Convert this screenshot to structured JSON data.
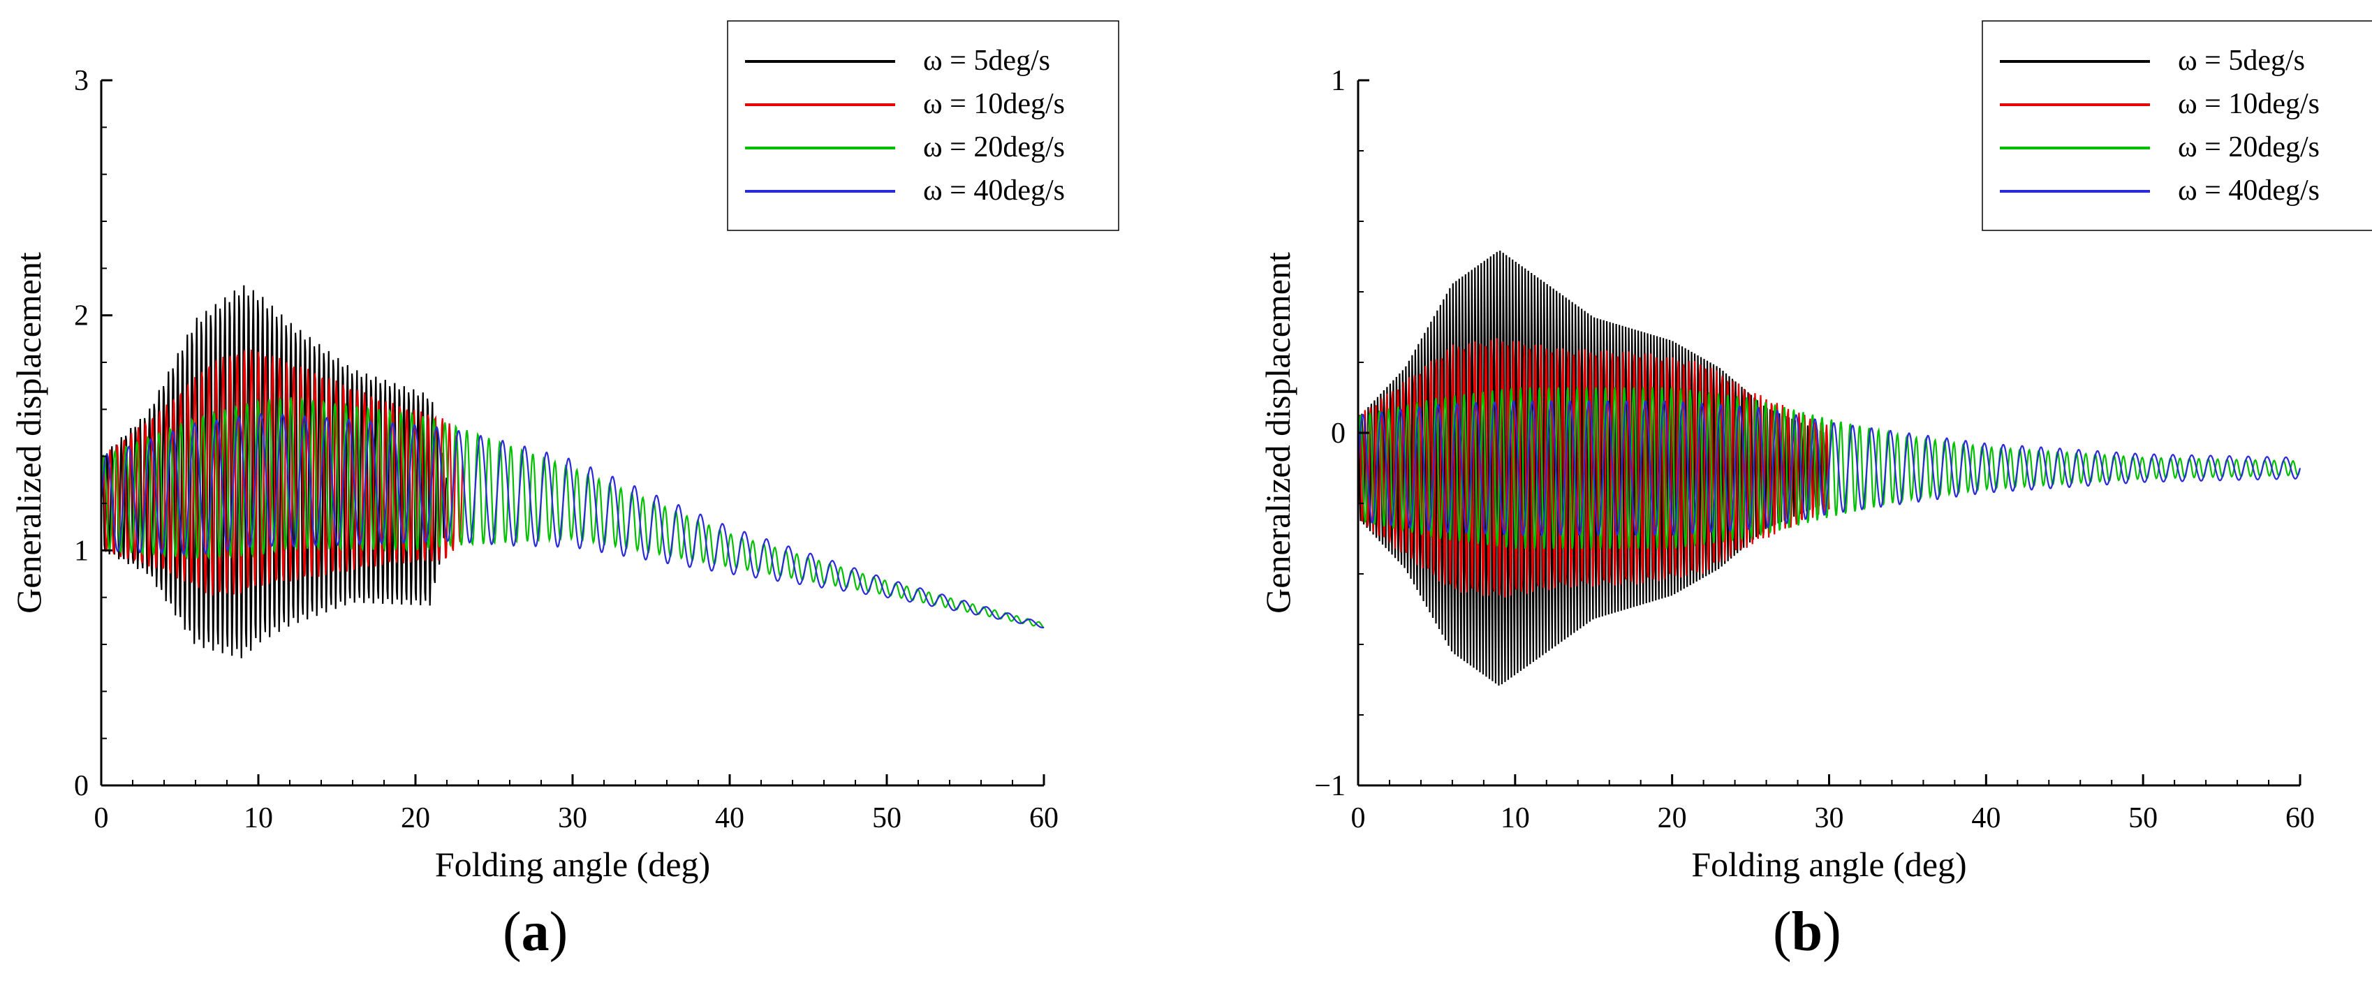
{
  "figure": {
    "captions": [
      "(a)",
      "(b)"
    ],
    "caption_letters": [
      "a",
      "b"
    ]
  },
  "colors": {
    "w5": "#000000",
    "w10": "#e60000",
    "w20": "#00c000",
    "w40": "#2a2ad8"
  },
  "chart_data": [
    {
      "panel": "a",
      "type": "line",
      "title": "",
      "xlabel": "Folding angle (deg)",
      "ylabel": "Generalized displacement",
      "xlim": [
        0,
        60
      ],
      "ylim": [
        0,
        3
      ],
      "xticks": [
        0,
        10,
        20,
        30,
        40,
        50,
        60
      ],
      "xtick_labels": [
        "0",
        "10",
        "20",
        "30",
        "40",
        "50",
        "60"
      ],
      "yticks": [
        0,
        1,
        2,
        3
      ],
      "ytick_labels": [
        "0",
        "1",
        "2",
        "3"
      ],
      "legend_position": "top-right",
      "legend": [
        "ω = 5deg/s",
        "ω = 10deg/s",
        "ω = 20deg/s",
        "ω = 40deg/s"
      ],
      "series": [
        {
          "name": "ω = 5deg/s",
          "color_key": "w5",
          "period": 0.3,
          "end": 22,
          "center": [
            [
              0,
              1.2
            ],
            [
              10,
              1.35
            ],
            [
              22,
              1.2
            ]
          ],
          "amplitude": [
            [
              0,
              0.2
            ],
            [
              3,
              0.35
            ],
            [
              6,
              0.7
            ],
            [
              9,
              0.8
            ],
            [
              12,
              0.65
            ],
            [
              16,
              0.5
            ],
            [
              21,
              0.45
            ],
            [
              22,
              0.1
            ]
          ]
        },
        {
          "name": "ω = 10deg/s",
          "color_key": "w10",
          "period": 0.45,
          "end": 23,
          "center": [
            [
              0,
              1.2
            ],
            [
              10,
              1.35
            ],
            [
              23,
              1.25
            ]
          ],
          "amplitude": [
            [
              0,
              0.2
            ],
            [
              4,
              0.35
            ],
            [
              7,
              0.5
            ],
            [
              9,
              0.52
            ],
            [
              13,
              0.45
            ],
            [
              18,
              0.35
            ],
            [
              22,
              0.3
            ],
            [
              23,
              0.2
            ]
          ]
        },
        {
          "name": "ω = 20deg/s",
          "color_key": "w20",
          "period": 0.7,
          "end": 60,
          "center": [
            [
              0,
              1.2
            ],
            [
              12,
              1.33
            ],
            [
              22,
              1.28
            ],
            [
              30,
              1.2
            ],
            [
              40,
              1.0
            ],
            [
              50,
              0.84
            ],
            [
              60,
              0.68
            ]
          ],
          "amplitude": [
            [
              0,
              0.2
            ],
            [
              6,
              0.3
            ],
            [
              10,
              0.33
            ],
            [
              20,
              0.29
            ],
            [
              25,
              0.22
            ],
            [
              30,
              0.15
            ],
            [
              40,
              0.07
            ],
            [
              50,
              0.03
            ],
            [
              60,
              0.01
            ]
          ]
        },
        {
          "name": "ω = 40deg/s",
          "color_key": "w40",
          "period": 1.4,
          "end": 60,
          "center": [
            [
              0,
              1.2
            ],
            [
              10,
              1.3
            ],
            [
              22,
              1.28
            ],
            [
              30,
              1.2
            ],
            [
              40,
              1.0
            ],
            [
              50,
              0.84
            ],
            [
              60,
              0.68
            ]
          ],
          "amplitude": [
            [
              0,
              0.2
            ],
            [
              6,
              0.28
            ],
            [
              12,
              0.28
            ],
            [
              20,
              0.25
            ],
            [
              26,
              0.22
            ],
            [
              32,
              0.17
            ],
            [
              40,
              0.1
            ],
            [
              50,
              0.04
            ],
            [
              60,
              0.01
            ]
          ]
        }
      ]
    },
    {
      "panel": "b",
      "type": "line",
      "title": "",
      "xlabel": "Folding angle (deg)",
      "ylabel": "Generalized displacement",
      "xlim": [
        0,
        60
      ],
      "ylim": [
        -1,
        1
      ],
      "xticks": [
        0,
        10,
        20,
        30,
        40,
        50,
        60
      ],
      "xtick_labels": [
        "0",
        "10",
        "20",
        "30",
        "40",
        "50",
        "60"
      ],
      "yticks": [
        -1,
        0,
        1
      ],
      "ytick_labels": [
        "−1",
        "0",
        "1"
      ],
      "legend_position": "top-right",
      "legend": [
        "ω = 5deg/s",
        "ω = 10deg/s",
        "ω = 20deg/s",
        "ω = 40deg/s"
      ],
      "series": [
        {
          "name": "ω = 5deg/s",
          "color_key": "w5",
          "period": 0.2,
          "end": 30,
          "center": [
            [
              0,
              -0.1
            ],
            [
              30,
              -0.1
            ]
          ],
          "amplitude": [
            [
              0,
              0.15
            ],
            [
              3,
              0.3
            ],
            [
              6,
              0.55
            ],
            [
              9,
              0.65
            ],
            [
              12,
              0.55
            ],
            [
              15,
              0.45
            ],
            [
              20,
              0.38
            ],
            [
              23,
              0.3
            ],
            [
              26,
              0.18
            ],
            [
              30,
              0.1
            ]
          ]
        },
        {
          "name": "ω = 10deg/s",
          "color_key": "w10",
          "period": 0.35,
          "end": 30,
          "center": [
            [
              0,
              -0.1
            ],
            [
              30,
              -0.1
            ]
          ],
          "amplitude": [
            [
              0,
              0.15
            ],
            [
              3,
              0.25
            ],
            [
              6,
              0.35
            ],
            [
              9,
              0.37
            ],
            [
              13,
              0.34
            ],
            [
              18,
              0.33
            ],
            [
              22,
              0.3
            ],
            [
              25,
              0.22
            ],
            [
              30,
              0.12
            ]
          ]
        },
        {
          "name": "ω = 20deg/s",
          "color_key": "w20",
          "period": 0.6,
          "end": 60,
          "center": [
            [
              0,
              -0.1
            ],
            [
              60,
              -0.1
            ]
          ],
          "amplitude": [
            [
              0,
              0.15
            ],
            [
              5,
              0.2
            ],
            [
              10,
              0.23
            ],
            [
              20,
              0.23
            ],
            [
              25,
              0.2
            ],
            [
              30,
              0.14
            ],
            [
              35,
              0.09
            ],
            [
              40,
              0.06
            ],
            [
              50,
              0.03
            ],
            [
              60,
              0.02
            ]
          ]
        },
        {
          "name": "ω = 40deg/s",
          "color_key": "w40",
          "period": 1.2,
          "end": 60,
          "center": [
            [
              0,
              -0.1
            ],
            [
              60,
              -0.1
            ]
          ],
          "amplitude": [
            [
              0,
              0.15
            ],
            [
              5,
              0.18
            ],
            [
              10,
              0.19
            ],
            [
              20,
              0.19
            ],
            [
              26,
              0.17
            ],
            [
              30,
              0.13
            ],
            [
              35,
              0.1
            ],
            [
              40,
              0.07
            ],
            [
              50,
              0.04
            ],
            [
              60,
              0.03
            ]
          ]
        }
      ]
    }
  ]
}
